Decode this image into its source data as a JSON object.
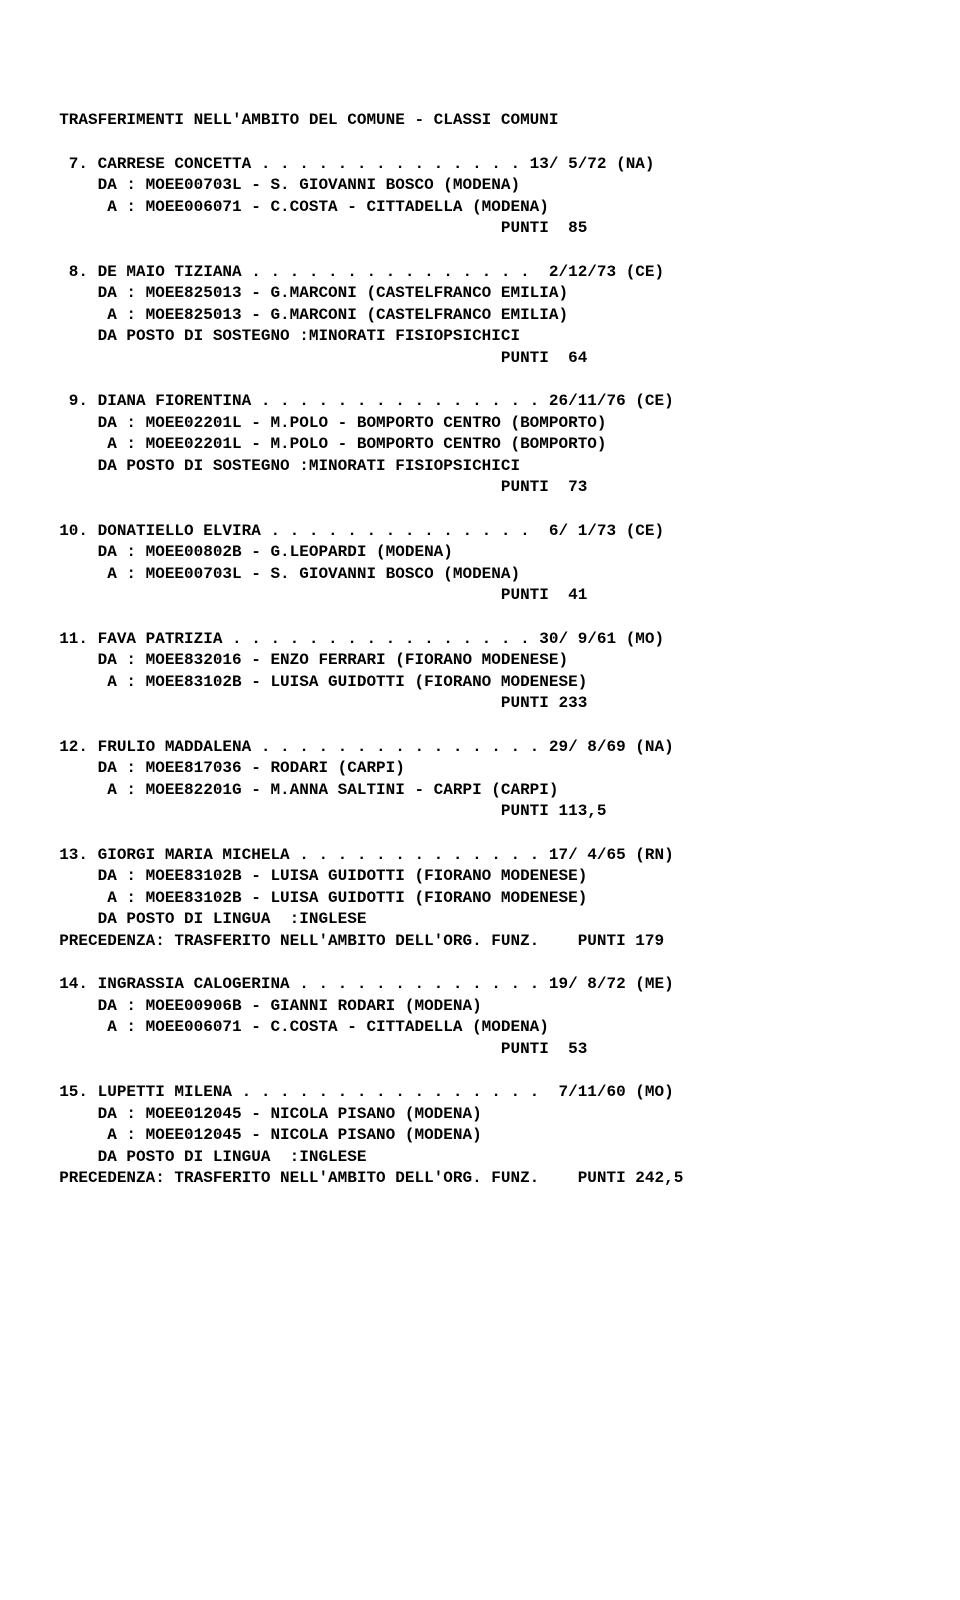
{
  "header": "  TRASFERIMENTI NELL'AMBITO DEL COMUNE - CLASSI COMUNI",
  "entries": [
    {
      "num": " 7",
      "name": "CARRESE CONCETTA",
      "dots": " . . . . . . . . . . . . . . ",
      "date": "13/ 5/72 (NA)",
      "da": "      DA : MOEE00703L - S. GIOVANNI BOSCO (MODENA)",
      "a": "       A : MOEE006071 - C.COSTA - CITTADELLA (MODENA)",
      "extra": [],
      "points": "                                                PUNTI  85"
    },
    {
      "num": " 8",
      "name": "DE MAIO TIZIANA",
      "dots": " . . . . . . . . . . . . . . .  ",
      "date": "2/12/73 (CE)",
      "da": "      DA : MOEE825013 - G.MARCONI (CASTELFRANCO EMILIA)",
      "a": "       A : MOEE825013 - G.MARCONI (CASTELFRANCO EMILIA)",
      "extra": [
        "      DA POSTO DI SOSTEGNO :MINORATI FISIOPSICHICI"
      ],
      "points": "                                                PUNTI  64"
    },
    {
      "num": " 9",
      "name": "DIANA FIORENTINA",
      "dots": " . . . . . . . . . . . . . . . ",
      "date": "26/11/76 (CE)",
      "da": "      DA : MOEE02201L - M.POLO - BOMPORTO CENTRO (BOMPORTO)",
      "a": "       A : MOEE02201L - M.POLO - BOMPORTO CENTRO (BOMPORTO)",
      "extra": [
        "      DA POSTO DI SOSTEGNO :MINORATI FISIOPSICHICI"
      ],
      "points": "                                                PUNTI  73"
    },
    {
      "num": "10",
      "name": "DONATIELLO ELVIRA",
      "dots": " . . . . . . . . . . . . . .  ",
      "date": "6/ 1/73 (CE)",
      "da": "      DA : MOEE00802B - G.LEOPARDI (MODENA)",
      "a": "       A : MOEE00703L - S. GIOVANNI BOSCO (MODENA)",
      "extra": [],
      "points": "                                                PUNTI  41"
    },
    {
      "num": "11",
      "name": "FAVA PATRIZIA",
      "dots": " . . . . . . . . . . . . . . . . ",
      "date": "30/ 9/61 (MO)",
      "da": "      DA : MOEE832016 - ENZO FERRARI (FIORANO MODENESE)",
      "a": "       A : MOEE83102B - LUISA GUIDOTTI (FIORANO MODENESE)",
      "extra": [],
      "points": "                                                PUNTI 233"
    },
    {
      "num": "12",
      "name": "FRULIO MADDALENA",
      "dots": " . . . . . . . . . . . . . . . ",
      "date": "29/ 8/69 (NA)",
      "da": "      DA : MOEE817036 - RODARI (CARPI)",
      "a": "       A : MOEE82201G - M.ANNA SALTINI - CARPI (CARPI)",
      "extra": [],
      "points": "                                                PUNTI 113,5"
    },
    {
      "num": "13",
      "name": "GIORGI MARIA MICHELA",
      "dots": " . . . . . . . . . . . . . ",
      "date": "17/ 4/65 (RN)",
      "da": "      DA : MOEE83102B - LUISA GUIDOTTI (FIORANO MODENESE)",
      "a": "       A : MOEE83102B - LUISA GUIDOTTI (FIORANO MODENESE)",
      "extra": [
        "      DA POSTO DI LINGUA  :INGLESE",
        "  PRECEDENZA: TRASFERITO NELL'AMBITO DELL'ORG. FUNZ.    PUNTI 179"
      ],
      "points": null
    },
    {
      "num": "14",
      "name": "INGRASSIA CALOGERINA",
      "dots": " . . . . . . . . . . . . . ",
      "date": "19/ 8/72 (ME)",
      "da": "      DA : MOEE00906B - GIANNI RODARI (MODENA)",
      "a": "       A : MOEE006071 - C.COSTA - CITTADELLA (MODENA)",
      "extra": [],
      "points": "                                                PUNTI  53"
    },
    {
      "num": "15",
      "name": "LUPETTI MILENA",
      "dots": " . . . . . . . . . . . . . . . .  ",
      "date": "7/11/60 (MO)",
      "da": "      DA : MOEE012045 - NICOLA PISANO (MODENA)",
      "a": "       A : MOEE012045 - NICOLA PISANO (MODENA)",
      "extra": [
        "      DA POSTO DI LINGUA  :INGLESE",
        "  PRECEDENZA: TRASFERITO NELL'AMBITO DELL'ORG. FUNZ.    PUNTI 242,5"
      ],
      "points": null
    }
  ]
}
